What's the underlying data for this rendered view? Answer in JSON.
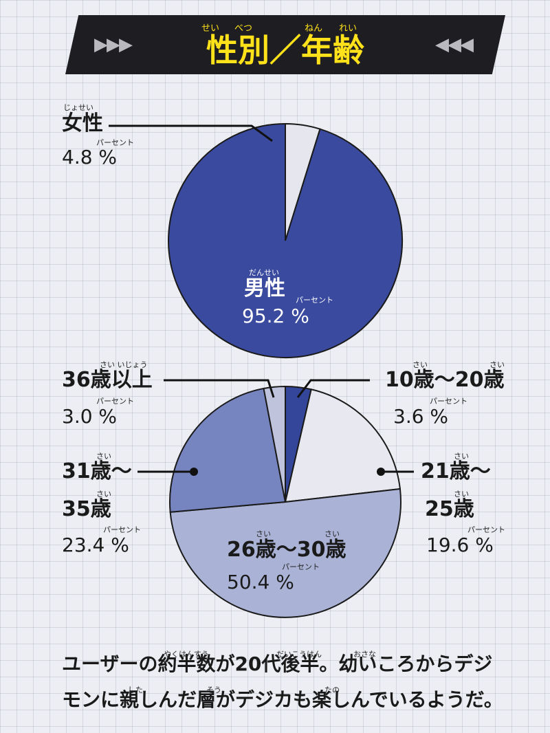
{
  "banner": {
    "title": "性別／年齢",
    "ruby_sei": "せい",
    "ruby_betsu": "べつ",
    "ruby_nen": "ねん",
    "ruby_rei": "れい",
    "arrows_left": "▶▶▶",
    "arrows_right": "◀◀◀"
  },
  "chart_data": [
    {
      "type": "pie",
      "title": "性別",
      "categories": [
        "女性",
        "男性"
      ],
      "values": [
        4.8,
        95.2
      ],
      "value_labels": [
        "4.8 %",
        "95.2 %"
      ],
      "colors": [
        "#e6e7ee",
        "#3a4a9e"
      ]
    },
    {
      "type": "pie",
      "title": "年齢",
      "categories": [
        "10歳〜20歳",
        "21歳〜25歳",
        "26歳〜30歳",
        "31歳〜35歳",
        "36歳以上"
      ],
      "values": [
        3.6,
        19.6,
        50.4,
        23.4,
        3.0
      ],
      "value_labels": [
        "3.6 %",
        "19.6 %",
        "50.4 %",
        "23.4 %",
        "3.0 %"
      ],
      "colors": [
        "#34469a",
        "#e8e9f0",
        "#aab3d6",
        "#7684bf",
        "#bfc4dc"
      ]
    }
  ],
  "labels": {
    "female_ruby": "じょせい",
    "female": "女性",
    "female_pct": "4.8 %",
    "male_ruby": "だんせい",
    "male": "男性",
    "male_pct": "95.2 %",
    "age36_ruby": "さい いじょう",
    "age36": "36歳以上",
    "age36_pct": "3.0 %",
    "age10_ruby1": "さい",
    "age10_ruby2": "さい",
    "age10": "10歳〜20歳",
    "age10_pct": "3.6 %",
    "age31_ruby1": "さい",
    "age31_line1": "31歳〜",
    "age31_ruby2": "さい",
    "age31_line2": "35歳",
    "age31_pct": "23.4 %",
    "age21_ruby1": "さい",
    "age21_line1": "21歳〜",
    "age21_ruby2": "さい",
    "age21_line2": "25歳",
    "age21_pct": "19.6 %",
    "age26_ruby1": "さい",
    "age26_ruby2": "さい",
    "age26": "26歳〜30歳",
    "age26_pct": "50.4 %",
    "percent_ruby": "パーセント"
  },
  "footer": {
    "line1": "ユーザーの約半数が20代後半。幼いころからデジ",
    "line2": "モンに親しんだ層がデジカも楽しんでいるようだ。",
    "ruby_yakuhansuu": "やくはんすう",
    "ruby_daikouhan": "だいこうはん",
    "ruby_osana": "おさな",
    "ruby_shita": "した",
    "ruby_sou": "そう",
    "ruby_tano": "たの"
  }
}
